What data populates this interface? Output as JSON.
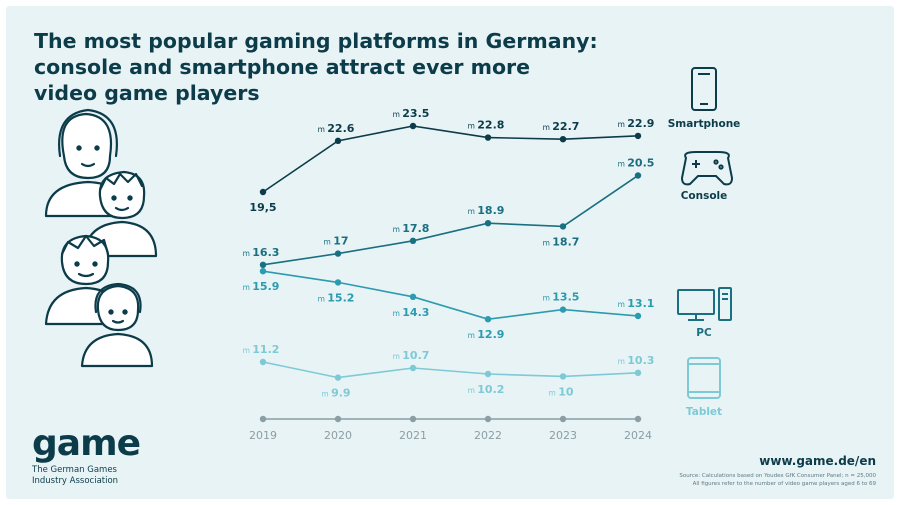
{
  "title_lines": [
    "The most popular gaming platforms in Germany:",
    "console and smartphone attract ever more",
    "video game players"
  ],
  "chart_data": {
    "type": "line",
    "x": [
      "2019",
      "2020",
      "2021",
      "2022",
      "2023",
      "2024"
    ],
    "unit_prefix": "m",
    "series": [
      {
        "name": "Smartphone",
        "icon": "smartphone-icon",
        "color": "#0c3c4a",
        "values": [
          19.5,
          22.6,
          23.5,
          22.8,
          22.7,
          22.9
        ],
        "labels": [
          "19,5",
          "22.6",
          "23.5",
          "22.8",
          "22.7",
          "22.9"
        ]
      },
      {
        "name": "Console",
        "icon": "gamepad-icon",
        "color": "#1a6f80",
        "values": [
          16.3,
          17,
          17.8,
          18.9,
          18.7,
          20.5
        ],
        "labels": [
          "16.3",
          "17",
          "17.8",
          "18.9",
          "18.7",
          "20.5"
        ]
      },
      {
        "name": "PC",
        "icon": "desktop-pc-icon",
        "color": "#2b9bb0",
        "values": [
          15.9,
          15.2,
          14.3,
          12.9,
          13.5,
          13.1
        ],
        "labels": [
          "15.9",
          "15.2",
          "14.3",
          "12.9",
          "13.5",
          "13.1"
        ]
      },
      {
        "name": "Tablet",
        "icon": "tablet-icon",
        "color": "#7dcad6",
        "values": [
          11.2,
          9.9,
          10.7,
          10.2,
          10,
          10.3
        ],
        "labels": [
          "11.2",
          "9.9",
          "10.7",
          "10.2",
          "10",
          "10.3"
        ]
      }
    ],
    "grid": false,
    "legend_position": "right"
  },
  "illustration": {
    "icon": "people-illustration"
  },
  "footer": {
    "logo_word": "game",
    "logo_sub": "The German Games Industry Association",
    "website": "www.game.de/en",
    "source_lines": [
      "Source: Calculations based on Youdex GfK Consumer Panel; n = 25,000",
      "All figures refer to the number of video game players aged 6 to 69"
    ]
  }
}
